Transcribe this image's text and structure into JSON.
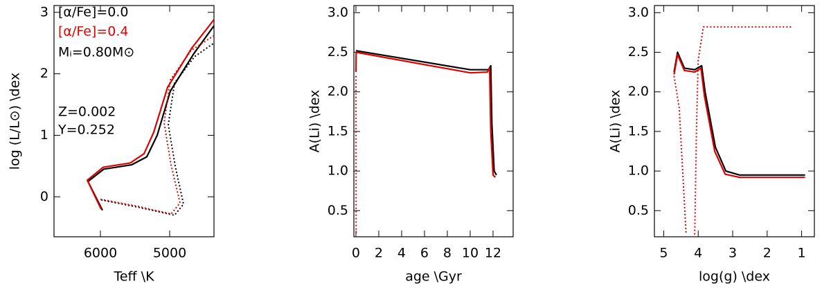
{
  "chart_data": [
    {
      "type": "line",
      "xlabel": "Teff \\K",
      "ylabel": "log (L/L⊙) \\dex",
      "xlim": [
        6670,
        4360
      ],
      "ylim": [
        -0.65,
        3.11
      ],
      "xticks": [
        6000,
        5000
      ],
      "yticks": [
        0,
        1,
        2,
        3
      ],
      "annotations": [
        {
          "text": "[α/Fe]=0.0",
          "color": "#000000"
        },
        {
          "text": "[α/Fe]=0.4",
          "color": "#e00000"
        },
        {
          "text": "Mᵢ=0.80M⊙",
          "color": "#000000"
        },
        {
          "text": "Z=0.002",
          "color": "#000000"
        },
        {
          "text": "Y=0.252",
          "color": "#000000"
        }
      ],
      "series": [
        {
          "color": "#000000",
          "dash": "solid",
          "x": [
            5970,
            6180,
            5950,
            5550,
            5330,
            5180,
            4990,
            4650,
            4360
          ],
          "values": [
            -0.22,
            0.25,
            0.45,
            0.52,
            0.65,
            1.0,
            1.72,
            2.33,
            2.78
          ]
        },
        {
          "color": "#e00000",
          "dash": "solid",
          "x": [
            5990,
            6190,
            5960,
            5570,
            5370,
            5230,
            5030,
            4680,
            4360
          ],
          "values": [
            -0.2,
            0.27,
            0.48,
            0.55,
            0.7,
            1.05,
            1.78,
            2.42,
            2.88
          ]
        },
        {
          "color": "#000000",
          "dash": "dotted",
          "x": [
            5990,
            5450,
            4930,
            4800,
            4920,
            5020,
            4930,
            4640,
            4360
          ],
          "values": [
            -0.05,
            -0.17,
            -0.3,
            -0.12,
            0.5,
            1.17,
            1.85,
            2.28,
            2.5
          ]
        },
        {
          "color": "#e00000",
          "dash": "dotted",
          "x": [
            6000,
            5480,
            4980,
            4850,
            4980,
            5080,
            4990,
            4690,
            4360
          ],
          "values": [
            -0.04,
            -0.15,
            -0.28,
            -0.1,
            0.52,
            1.2,
            1.9,
            2.38,
            2.62
          ]
        }
      ]
    },
    {
      "type": "line",
      "xlabel": "age \\Gyr",
      "ylabel": "A(Li) \\dex",
      "xlim": [
        -0.18,
        13.76
      ],
      "ylim": [
        0.17,
        3.09
      ],
      "xticks": [
        0,
        2,
        4,
        6,
        8,
        10,
        12
      ],
      "yticks": [
        0.5,
        {
          "value": 1,
          "label": "1.0"
        },
        1.5,
        {
          "value": 2,
          "label": "2.0"
        },
        2.5,
        {
          "value": 3,
          "label": "3.0"
        }
      ],
      "series": [
        {
          "color": "#e00000",
          "dash": "dotted",
          "x": [
            0,
            0.02
          ],
          "values": [
            2.2,
            0.2
          ]
        },
        {
          "color": "#000000",
          "dash": "solid",
          "x": [
            0,
            10,
            11.6,
            11.8,
            11.9,
            12.1,
            12.3
          ],
          "values": [
            2.52,
            2.28,
            2.28,
            2.33,
            1.6,
            1.0,
            0.95
          ]
        },
        {
          "color": "#e00000",
          "dash": "solid",
          "x": [
            0,
            0.02,
            10,
            11.5,
            11.7,
            11.8,
            12.0,
            12.2
          ],
          "values": [
            2.25,
            2.5,
            2.24,
            2.25,
            2.3,
            1.5,
            0.95,
            0.92
          ]
        }
      ]
    },
    {
      "type": "line",
      "xlabel": "log(g) \\dex",
      "ylabel": "A(Li) \\dex",
      "xlim": [
        5.27,
        0.63
      ],
      "ylim": [
        0.17,
        3.09
      ],
      "xticks": [
        5,
        4,
        3,
        2,
        1
      ],
      "yticks": [
        0.5,
        {
          "value": 1,
          "label": "1.0"
        },
        1.5,
        {
          "value": 2,
          "label": "2.0"
        },
        2.5,
        {
          "value": 3,
          "label": "3.0"
        }
      ],
      "series": [
        {
          "color": "#e00000",
          "dash": "dotted",
          "x": [
            4.7,
            4.55,
            4.45,
            4.35
          ],
          "values": [
            2.2,
            1.8,
            1.0,
            0.2
          ]
        },
        {
          "color": "#e00000",
          "dash": "dotted",
          "x": [
            4.1,
            4.05,
            4.0,
            3.85,
            1.25
          ],
          "values": [
            0.2,
            1.5,
            2.4,
            2.82,
            2.82
          ]
        },
        {
          "color": "#000000",
          "dash": "solid",
          "x": [
            4.7,
            4.6,
            4.4,
            4.1,
            3.9,
            3.8,
            3.5,
            3.2,
            2.8,
            0.9
          ],
          "values": [
            2.25,
            2.5,
            2.3,
            2.28,
            2.33,
            2.0,
            1.3,
            1.0,
            0.95,
            0.95
          ]
        },
        {
          "color": "#e00000",
          "dash": "solid",
          "x": [
            4.7,
            4.6,
            4.4,
            4.1,
            3.92,
            3.82,
            3.52,
            3.22,
            2.8,
            0.9
          ],
          "values": [
            2.22,
            2.47,
            2.27,
            2.25,
            2.3,
            1.95,
            1.25,
            0.96,
            0.92,
            0.92
          ]
        }
      ]
    }
  ]
}
